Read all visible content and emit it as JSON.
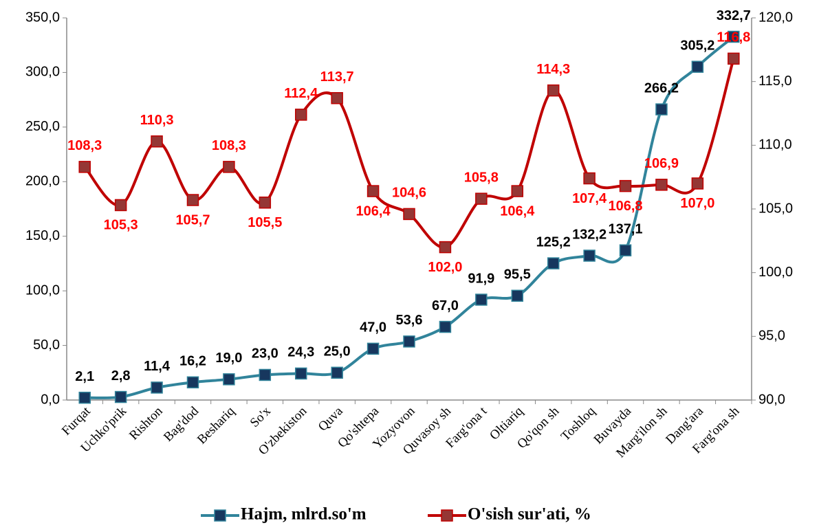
{
  "chart_data": {
    "type": "line",
    "categories": [
      "Furqat",
      "Uchko'prik",
      "Rishton",
      "Bag'dod",
      "Beshariq",
      "So'x",
      "O'zbekiston",
      "Quva",
      "Qo'shtepa",
      "Yozyovon",
      "Quvasoy sh",
      "Farg'ona t",
      "Oltiariq",
      "Qo'qon sh",
      "Toshloq",
      "Buvayda",
      "Marg'ilon sh",
      "Dang'ara",
      "Farg'ona sh"
    ],
    "series": [
      {
        "name": "Hajm, mlrd.so'm",
        "color": "#31849b",
        "marker_color": "#17375e",
        "label_color": "#000000",
        "values": [
          2.1,
          2.8,
          11.4,
          16.2,
          19.0,
          23.0,
          24.3,
          25.0,
          47.0,
          53.6,
          67.0,
          91.9,
          95.5,
          125.2,
          132.2,
          137.1,
          266.2,
          305.2,
          332.7
        ],
        "value_labels": [
          "2,1",
          "2,8",
          "11,4",
          "16,2",
          "19,0",
          "23,0",
          "24,3",
          "25,0",
          "47,0",
          "53,6",
          "67,0",
          "91,9",
          "95,5",
          "125,2",
          "132,2",
          "137,1",
          "266,2",
          "305,2",
          "332,7"
        ]
      },
      {
        "name": "O'sish sur'ati, %",
        "color": "#c00000",
        "marker_color": "#953735",
        "label_color": "#ff0000",
        "axis": "y2",
        "values": [
          108.3,
          105.3,
          110.3,
          105.7,
          108.3,
          105.5,
          112.4,
          113.7,
          106.4,
          104.6,
          102.0,
          105.8,
          106.4,
          114.3,
          107.4,
          106.8,
          106.9,
          107.0,
          116.8
        ],
        "value_labels": [
          "108,3",
          "105,3",
          "110,3",
          "105,7",
          "108,3",
          "105,5",
          "112,4",
          "113,7",
          "106,4",
          "104,6",
          "102,0",
          "105,8",
          "106,4",
          "114,3",
          "107,4",
          "106,8",
          "106,9",
          "107,0",
          "116,8"
        ]
      }
    ],
    "ylim": [
      0,
      350
    ],
    "yticks": [
      {
        "value": 0,
        "label": "0,0"
      },
      {
        "value": 50,
        "label": "50,0"
      },
      {
        "value": 100,
        "label": "100,0"
      },
      {
        "value": 150,
        "label": "150,0"
      },
      {
        "value": 200,
        "label": "200,0"
      },
      {
        "value": 250,
        "label": "250,0"
      },
      {
        "value": 300,
        "label": "300,0"
      },
      {
        "value": 350,
        "label": "350,0"
      }
    ],
    "y2lim": [
      90,
      120
    ],
    "y2ticks": [
      {
        "value": 90,
        "label": "90,0"
      },
      {
        "value": 95,
        "label": "95,0"
      },
      {
        "value": 100,
        "label": "100,0"
      },
      {
        "value": 105,
        "label": "105,0"
      },
      {
        "value": 110,
        "label": "110,0"
      },
      {
        "value": 115,
        "label": "115,0"
      },
      {
        "value": 120,
        "label": "120,0"
      }
    ],
    "legend": "bottom",
    "smooth": true
  }
}
